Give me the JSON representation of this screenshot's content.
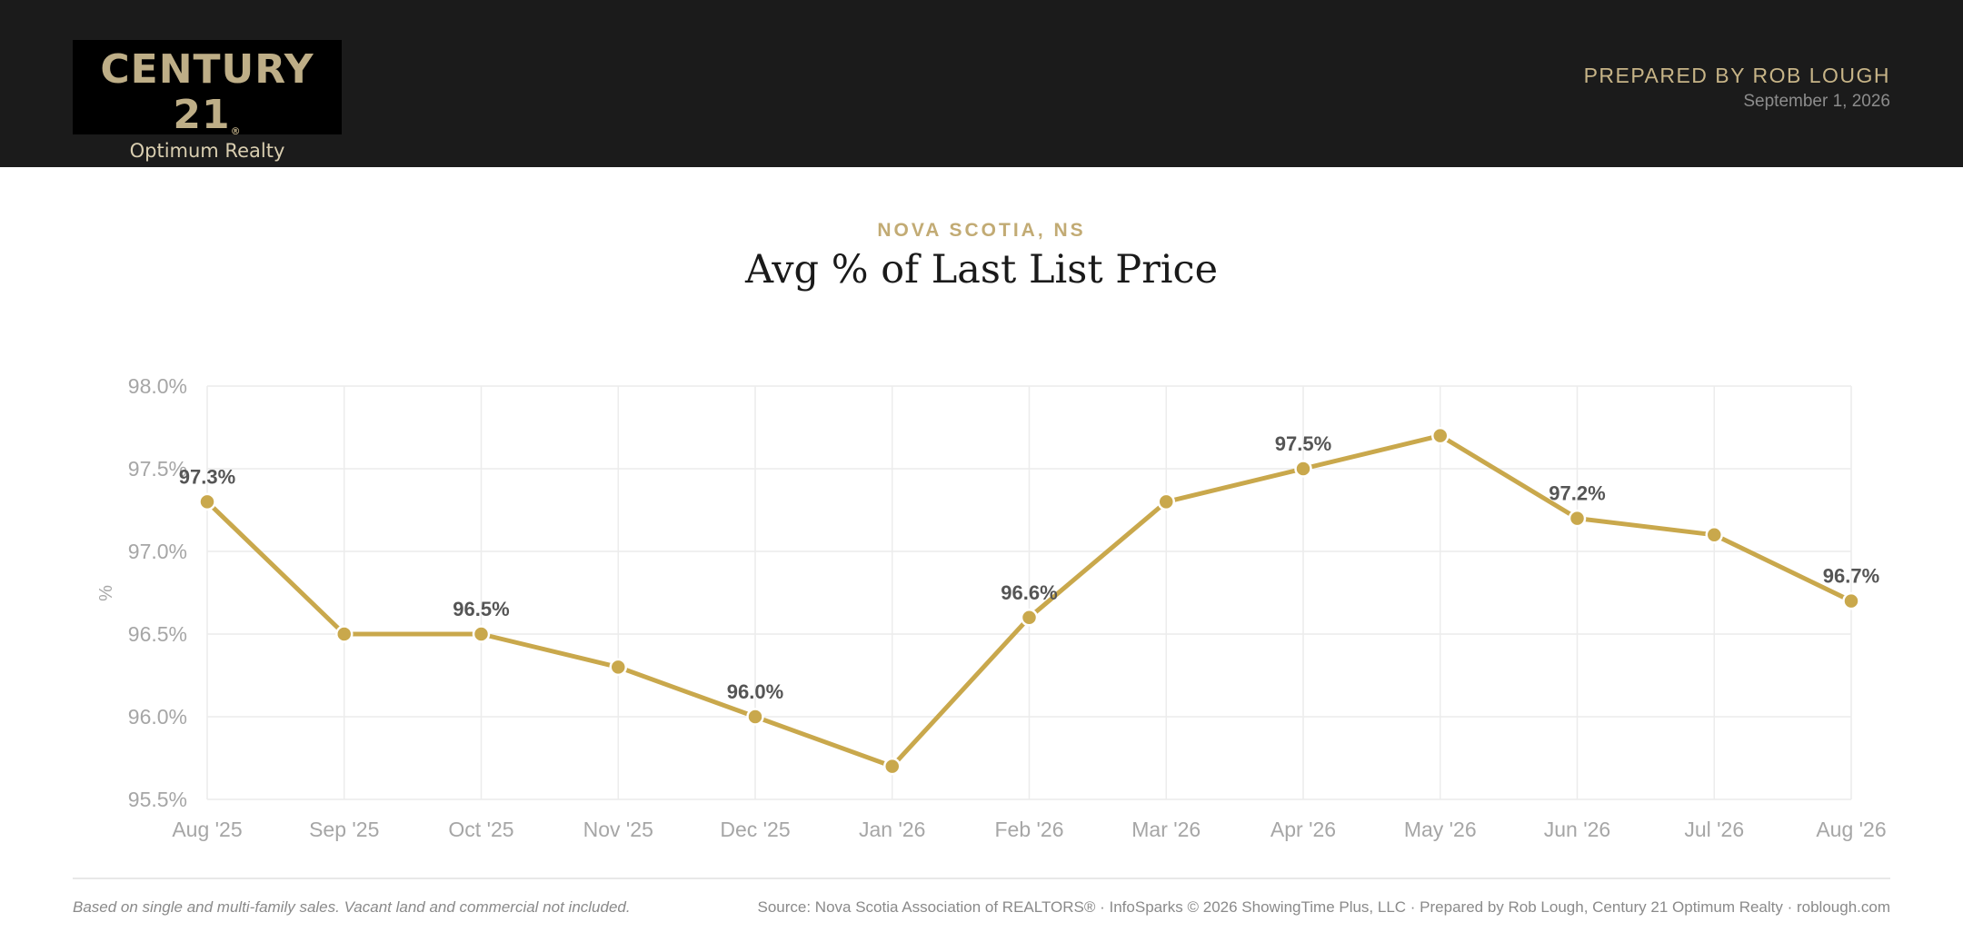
{
  "header": {
    "logo": {
      "brand": "CENTURY 21",
      "registered": "®",
      "office": "Optimum Realty"
    },
    "prepared_by": "PREPARED BY ROB LOUGH",
    "date": "September 1, 2026"
  },
  "colors": {
    "header_bg": "#1b1b1b",
    "accent": "#c9a84c",
    "logo_gold": "#beae87",
    "grid": "#ececec",
    "axis_text": "#a6a6a6",
    "label_text": "#555555"
  },
  "chart_data": {
    "type": "line",
    "subtitle": "NOVA SCOTIA, NS",
    "title": "Avg % of Last List Price",
    "ylabel": "%",
    "xlabel": "",
    "ylim": [
      95.5,
      98.0
    ],
    "yticks": [
      95.5,
      96.0,
      96.5,
      97.0,
      97.5,
      98.0
    ],
    "ytick_labels": [
      "95.5%",
      "96.0%",
      "96.5%",
      "97.0%",
      "97.5%",
      "98.0%"
    ],
    "grid": true,
    "legend": "none",
    "categories": [
      "Aug '25",
      "Sep '25",
      "Oct '25",
      "Nov '25",
      "Dec '25",
      "Jan '26",
      "Feb '26",
      "Mar '26",
      "Apr '26",
      "May '26",
      "Jun '26",
      "Jul '26",
      "Aug '26"
    ],
    "values": [
      97.3,
      96.5,
      96.5,
      96.3,
      96.0,
      95.7,
      96.6,
      97.3,
      97.5,
      97.7,
      97.2,
      97.1,
      96.7
    ],
    "data_labels": [
      "97.3%",
      "",
      "96.5%",
      "",
      "96.0%",
      "",
      "96.6%",
      "",
      "97.5%",
      "",
      "97.2%",
      "",
      "96.7%"
    ]
  },
  "footer": {
    "note": "Based on single and multi-family sales. Vacant land and commercial not included.",
    "source": "Source: Nova Scotia Association of REALTORS® · InfoSparks © 2026 ShowingTime Plus, LLC · Prepared by Rob Lough, Century 21 Optimum Realty · roblough.com"
  }
}
